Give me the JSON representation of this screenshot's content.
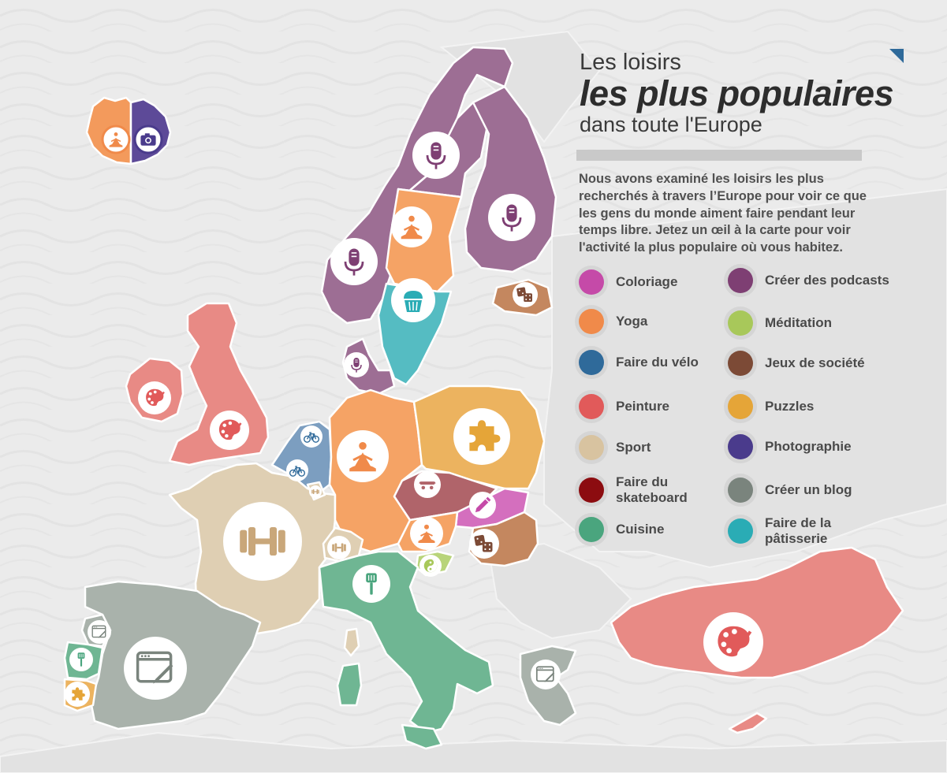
{
  "title": {
    "line1": "Les loisirs",
    "line2": "les plus populaires",
    "line3": "dans toute l'Europe"
  },
  "intro": "Nous avons examiné les loisirs les plus recherchés à travers l’Europe pour voir ce que les gens du monde aiment faire pendant leur temps libre. Jetez un œil à la carte pour voir l'activité la plus populaire où vous habitez.",
  "legend": [
    {
      "label": "Coloriage",
      "color": "#c54aa8"
    },
    {
      "label": "Yoga",
      "color": "#f08a4a"
    },
    {
      "label": "Faire du vélo",
      "color": "#2f6a9a"
    },
    {
      "label": "Peinture",
      "color": "#e15a5a"
    },
    {
      "label": "Sport",
      "color": "#d8c3a0"
    },
    {
      "label": "Faire du skateboard",
      "color": "#8c0c10"
    },
    {
      "label": "Cuisine",
      "color": "#4aa57e"
    },
    {
      "label": "Créer des podcasts",
      "color": "#7e3f73"
    },
    {
      "label": "Méditation",
      "color": "#a8c85a"
    },
    {
      "label": "Jeux de société",
      "color": "#7c4a36"
    },
    {
      "label": "Puzzles",
      "color": "#e5a538"
    },
    {
      "label": "Photographie",
      "color": "#4a3b8c"
    },
    {
      "label": "Créer un blog",
      "color": "#7a847d"
    },
    {
      "label": "Faire de la pâtisserie",
      "color": "#2aacb5"
    }
  ],
  "countries": [
    {
      "name": "Islande",
      "hobby": "Yoga / Photographie",
      "fill": "#f39a5c",
      "icon": "yoga-icon"
    },
    {
      "name": "Norvège",
      "hobby": "Créer des podcasts",
      "fill": "#9d6e94",
      "icon": "microphone-icon"
    },
    {
      "name": "Suède",
      "hobby": "Yoga / Faire de la pâtisserie",
      "fill": "#f5a365",
      "icon": "yoga-icon"
    },
    {
      "name": "Finlande",
      "hobby": "Créer des podcasts",
      "fill": "#9d6e94",
      "icon": "microphone-icon"
    },
    {
      "name": "Danemark",
      "hobby": "Créer des podcasts",
      "fill": "#9d6e94",
      "icon": "microphone-icon"
    },
    {
      "name": "Royaume-Uni",
      "hobby": "Peinture",
      "fill": "#e88a85",
      "icon": "palette-icon"
    },
    {
      "name": "Irlande",
      "hobby": "Peinture",
      "fill": "#e88a85",
      "icon": "palette-icon"
    },
    {
      "name": "France",
      "hobby": "Sport",
      "fill": "#dfcfb3",
      "icon": "dumbbell-icon"
    },
    {
      "name": "Espagne",
      "hobby": "Créer un blog",
      "fill": "#a9b2ab",
      "icon": "blog-icon"
    },
    {
      "name": "Portugal",
      "hobby": "Cuisine / Créer un blog / Puzzles",
      "fill": "#6fb693",
      "icon": "spatula-icon"
    },
    {
      "name": "Allemagne",
      "hobby": "Yoga",
      "fill": "#f5a365",
      "icon": "yoga-icon"
    },
    {
      "name": "Pologne",
      "hobby": "Puzzles",
      "fill": "#ecb35f",
      "icon": "puzzle-icon"
    },
    {
      "name": "Italie",
      "hobby": "Cuisine",
      "fill": "#6fb693",
      "icon": "spatula-icon"
    },
    {
      "name": "Turquie",
      "hobby": "Peinture",
      "fill": "#e88a85",
      "icon": "palette-icon"
    },
    {
      "name": "Grèce",
      "hobby": "Créer un blog",
      "fill": "#a9b2ab",
      "icon": "blog-icon"
    },
    {
      "name": "Benelux",
      "hobby": "Faire du vélo",
      "fill": "#7c9ec0",
      "icon": "bicycle-icon"
    },
    {
      "name": "Tchéquie",
      "hobby": "Faire du skateboard",
      "fill": "#b0646a",
      "icon": "skateboard-icon"
    },
    {
      "name": "Autriche",
      "hobby": "Yoga",
      "fill": "#f5a365",
      "icon": "yoga-icon"
    },
    {
      "name": "Hongrie",
      "hobby": "Coloriage",
      "fill": "#d46fbe",
      "icon": "pencil-icon"
    },
    {
      "name": "Roumanie",
      "hobby": "Jeux de société",
      "fill": "#c4875f",
      "icon": "dice-icon"
    },
    {
      "name": "Estonie",
      "hobby": "Jeux de société",
      "fill": "#c4875f",
      "icon": "dice-icon"
    },
    {
      "name": "Slovénie",
      "hobby": "Méditation",
      "fill": "#b8d47a",
      "icon": "yin-yang-icon"
    },
    {
      "name": "Suisse",
      "hobby": "Sport",
      "fill": "#dfcfb3",
      "icon": "dumbbell-icon"
    }
  ]
}
